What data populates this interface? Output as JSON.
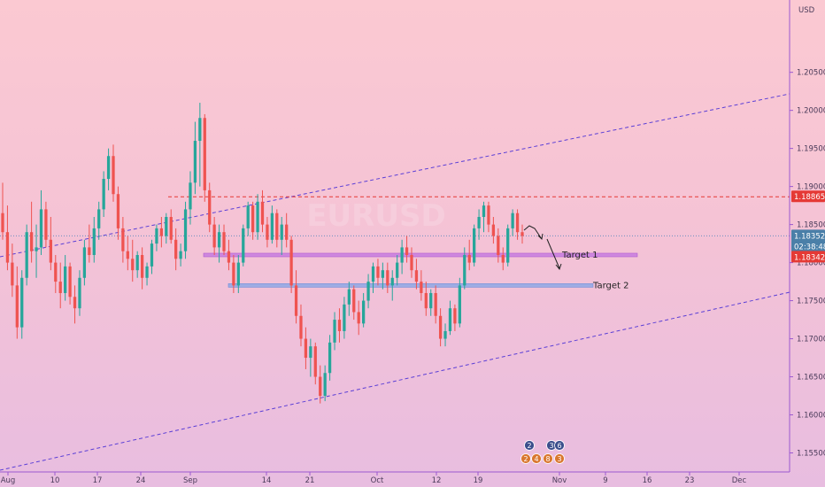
{
  "chart_data": {
    "type": "candlestick",
    "currency": "USD",
    "y_ticks": [
      "1.15500",
      "1.16000",
      "1.16500",
      "1.17000",
      "1.17500",
      "1.18000",
      "1.18500",
      "1.19000",
      "1.19500",
      "1.20000",
      "1.20500"
    ],
    "ylim": [
      1.1525,
      1.2145
    ],
    "x_ticks": [
      "Aug",
      "10",
      "17",
      "24",
      "Sep",
      "14",
      "21",
      "Oct",
      "12",
      "19",
      "Nov",
      "9",
      "16",
      "23",
      "Dec"
    ],
    "price_labels": {
      "resistance": "1.18865",
      "current": "1.18352",
      "countdown": "02:38:48",
      "last": "1.18342"
    },
    "annotations": {
      "target1": "Target 1",
      "target2": "Target 2",
      "target1_price": 1.181,
      "target2_price": 1.177
    },
    "watermark": "EURUSD",
    "events": {
      "top": [
        "2",
        "3",
        "6"
      ],
      "bottom": [
        "2",
        "4",
        "8",
        "3"
      ]
    },
    "colors": {
      "up": "#26a69a",
      "down": "#ef5350",
      "channel": "#5b3fd6",
      "resistance": "#e53935",
      "zone1": "#c77ddf",
      "zone2": "#8fa8e6"
    },
    "series": [
      {
        "o": 1.1865,
        "h": 1.1905,
        "l": 1.183,
        "c": 1.184
      },
      {
        "o": 1.184,
        "h": 1.1875,
        "l": 1.179,
        "c": 1.18
      },
      {
        "o": 1.18,
        "h": 1.1825,
        "l": 1.1755,
        "c": 1.177
      },
      {
        "o": 1.177,
        "h": 1.1795,
        "l": 1.17,
        "c": 1.1715
      },
      {
        "o": 1.1715,
        "h": 1.179,
        "l": 1.17,
        "c": 1.178
      },
      {
        "o": 1.178,
        "h": 1.185,
        "l": 1.177,
        "c": 1.184
      },
      {
        "o": 1.184,
        "h": 1.188,
        "l": 1.18,
        "c": 1.1815
      },
      {
        "o": 1.1815,
        "h": 1.185,
        "l": 1.178,
        "c": 1.182
      },
      {
        "o": 1.182,
        "h": 1.1895,
        "l": 1.181,
        "c": 1.187
      },
      {
        "o": 1.187,
        "h": 1.188,
        "l": 1.182,
        "c": 1.183
      },
      {
        "o": 1.183,
        "h": 1.186,
        "l": 1.179,
        "c": 1.18
      },
      {
        "o": 1.18,
        "h": 1.181,
        "l": 1.176,
        "c": 1.1775
      },
      {
        "o": 1.1775,
        "h": 1.18,
        "l": 1.174,
        "c": 1.176
      },
      {
        "o": 1.176,
        "h": 1.181,
        "l": 1.175,
        "c": 1.1795
      },
      {
        "o": 1.1795,
        "h": 1.18,
        "l": 1.1745,
        "c": 1.1755
      },
      {
        "o": 1.1755,
        "h": 1.177,
        "l": 1.172,
        "c": 1.174
      },
      {
        "o": 1.174,
        "h": 1.179,
        "l": 1.173,
        "c": 1.178
      },
      {
        "o": 1.178,
        "h": 1.183,
        "l": 1.177,
        "c": 1.182
      },
      {
        "o": 1.182,
        "h": 1.185,
        "l": 1.18,
        "c": 1.181
      },
      {
        "o": 1.181,
        "h": 1.186,
        "l": 1.18,
        "c": 1.1845
      },
      {
        "o": 1.1845,
        "h": 1.188,
        "l": 1.183,
        "c": 1.187
      },
      {
        "o": 1.187,
        "h": 1.192,
        "l": 1.186,
        "c": 1.191
      },
      {
        "o": 1.191,
        "h": 1.195,
        "l": 1.1895,
        "c": 1.194
      },
      {
        "o": 1.194,
        "h": 1.1955,
        "l": 1.188,
        "c": 1.189
      },
      {
        "o": 1.189,
        "h": 1.19,
        "l": 1.183,
        "c": 1.1845
      },
      {
        "o": 1.1845,
        "h": 1.186,
        "l": 1.18,
        "c": 1.1815
      },
      {
        "o": 1.1815,
        "h": 1.1835,
        "l": 1.179,
        "c": 1.1805
      },
      {
        "o": 1.1805,
        "h": 1.183,
        "l": 1.1775,
        "c": 1.179
      },
      {
        "o": 1.179,
        "h": 1.1815,
        "l": 1.178,
        "c": 1.181
      },
      {
        "o": 1.181,
        "h": 1.182,
        "l": 1.1765,
        "c": 1.178
      },
      {
        "o": 1.178,
        "h": 1.18,
        "l": 1.177,
        "c": 1.1795
      },
      {
        "o": 1.1795,
        "h": 1.183,
        "l": 1.1785,
        "c": 1.1825
      },
      {
        "o": 1.1825,
        "h": 1.185,
        "l": 1.1815,
        "c": 1.1845
      },
      {
        "o": 1.1845,
        "h": 1.186,
        "l": 1.182,
        "c": 1.1835
      },
      {
        "o": 1.1835,
        "h": 1.1865,
        "l": 1.1825,
        "c": 1.186
      },
      {
        "o": 1.186,
        "h": 1.187,
        "l": 1.1825,
        "c": 1.183
      },
      {
        "o": 1.183,
        "h": 1.1845,
        "l": 1.179,
        "c": 1.1805
      },
      {
        "o": 1.1805,
        "h": 1.1825,
        "l": 1.1795,
        "c": 1.1815
      },
      {
        "o": 1.1815,
        "h": 1.188,
        "l": 1.1805,
        "c": 1.187
      },
      {
        "o": 1.187,
        "h": 1.192,
        "l": 1.185,
        "c": 1.1905
      },
      {
        "o": 1.1905,
        "h": 1.1985,
        "l": 1.189,
        "c": 1.196
      },
      {
        "o": 1.196,
        "h": 1.201,
        "l": 1.19,
        "c": 1.199
      },
      {
        "o": 1.199,
        "h": 1.1995,
        "l": 1.188,
        "c": 1.1895
      },
      {
        "o": 1.1895,
        "h": 1.1905,
        "l": 1.184,
        "c": 1.185
      },
      {
        "o": 1.185,
        "h": 1.186,
        "l": 1.181,
        "c": 1.182
      },
      {
        "o": 1.182,
        "h": 1.185,
        "l": 1.18,
        "c": 1.184
      },
      {
        "o": 1.184,
        "h": 1.185,
        "l": 1.181,
        "c": 1.1815
      },
      {
        "o": 1.1815,
        "h": 1.183,
        "l": 1.179,
        "c": 1.18
      },
      {
        "o": 1.18,
        "h": 1.181,
        "l": 1.176,
        "c": 1.177
      },
      {
        "o": 1.177,
        "h": 1.181,
        "l": 1.176,
        "c": 1.18
      },
      {
        "o": 1.18,
        "h": 1.185,
        "l": 1.1795,
        "c": 1.1845
      },
      {
        "o": 1.1845,
        "h": 1.188,
        "l": 1.1835,
        "c": 1.1875
      },
      {
        "o": 1.1875,
        "h": 1.188,
        "l": 1.183,
        "c": 1.184
      },
      {
        "o": 1.184,
        "h": 1.189,
        "l": 1.183,
        "c": 1.188
      },
      {
        "o": 1.188,
        "h": 1.1895,
        "l": 1.184,
        "c": 1.185
      },
      {
        "o": 1.185,
        "h": 1.186,
        "l": 1.182,
        "c": 1.183
      },
      {
        "o": 1.183,
        "h": 1.1875,
        "l": 1.1825,
        "c": 1.1865
      },
      {
        "o": 1.1865,
        "h": 1.187,
        "l": 1.182,
        "c": 1.183
      },
      {
        "o": 1.183,
        "h": 1.186,
        "l": 1.181,
        "c": 1.185
      },
      {
        "o": 1.185,
        "h": 1.1865,
        "l": 1.182,
        "c": 1.183
      },
      {
        "o": 1.183,
        "h": 1.1835,
        "l": 1.176,
        "c": 1.177
      },
      {
        "o": 1.177,
        "h": 1.179,
        "l": 1.172,
        "c": 1.173
      },
      {
        "o": 1.173,
        "h": 1.1745,
        "l": 1.169,
        "c": 1.17
      },
      {
        "o": 1.17,
        "h": 1.1715,
        "l": 1.166,
        "c": 1.1675
      },
      {
        "o": 1.1675,
        "h": 1.17,
        "l": 1.165,
        "c": 1.169
      },
      {
        "o": 1.169,
        "h": 1.1695,
        "l": 1.164,
        "c": 1.165
      },
      {
        "o": 1.165,
        "h": 1.1665,
        "l": 1.1615,
        "c": 1.1625
      },
      {
        "o": 1.1625,
        "h": 1.1665,
        "l": 1.1618,
        "c": 1.1655
      },
      {
        "o": 1.1655,
        "h": 1.1705,
        "l": 1.1645,
        "c": 1.1695
      },
      {
        "o": 1.1695,
        "h": 1.1735,
        "l": 1.1685,
        "c": 1.1725
      },
      {
        "o": 1.1725,
        "h": 1.174,
        "l": 1.1695,
        "c": 1.171
      },
      {
        "o": 1.171,
        "h": 1.1755,
        "l": 1.17,
        "c": 1.1745
      },
      {
        "o": 1.1745,
        "h": 1.1775,
        "l": 1.173,
        "c": 1.1765
      },
      {
        "o": 1.1765,
        "h": 1.177,
        "l": 1.1725,
        "c": 1.1735
      },
      {
        "o": 1.1735,
        "h": 1.175,
        "l": 1.1705,
        "c": 1.172
      },
      {
        "o": 1.172,
        "h": 1.176,
        "l": 1.1715,
        "c": 1.175
      },
      {
        "o": 1.175,
        "h": 1.1785,
        "l": 1.174,
        "c": 1.1775
      },
      {
        "o": 1.1775,
        "h": 1.18,
        "l": 1.176,
        "c": 1.1795
      },
      {
        "o": 1.1795,
        "h": 1.1805,
        "l": 1.177,
        "c": 1.178
      },
      {
        "o": 1.178,
        "h": 1.18,
        "l": 1.1765,
        "c": 1.179
      },
      {
        "o": 1.179,
        "h": 1.18,
        "l": 1.176,
        "c": 1.177
      },
      {
        "o": 1.177,
        "h": 1.179,
        "l": 1.175,
        "c": 1.178
      },
      {
        "o": 1.178,
        "h": 1.181,
        "l": 1.177,
        "c": 1.18
      },
      {
        "o": 1.18,
        "h": 1.183,
        "l": 1.1785,
        "c": 1.182
      },
      {
        "o": 1.182,
        "h": 1.1835,
        "l": 1.18,
        "c": 1.181
      },
      {
        "o": 1.181,
        "h": 1.182,
        "l": 1.178,
        "c": 1.179
      },
      {
        "o": 1.179,
        "h": 1.1805,
        "l": 1.1765,
        "c": 1.1775
      },
      {
        "o": 1.1775,
        "h": 1.179,
        "l": 1.175,
        "c": 1.176
      },
      {
        "o": 1.176,
        "h": 1.1775,
        "l": 1.173,
        "c": 1.174
      },
      {
        "o": 1.174,
        "h": 1.1765,
        "l": 1.173,
        "c": 1.176
      },
      {
        "o": 1.176,
        "h": 1.177,
        "l": 1.172,
        "c": 1.173
      },
      {
        "o": 1.173,
        "h": 1.174,
        "l": 1.169,
        "c": 1.17
      },
      {
        "o": 1.17,
        "h": 1.172,
        "l": 1.169,
        "c": 1.171
      },
      {
        "o": 1.171,
        "h": 1.175,
        "l": 1.1705,
        "c": 1.174
      },
      {
        "o": 1.174,
        "h": 1.1745,
        "l": 1.171,
        "c": 1.172
      },
      {
        "o": 1.172,
        "h": 1.178,
        "l": 1.1715,
        "c": 1.177
      },
      {
        "o": 1.177,
        "h": 1.182,
        "l": 1.1765,
        "c": 1.181
      },
      {
        "o": 1.181,
        "h": 1.183,
        "l": 1.179,
        "c": 1.18
      },
      {
        "o": 1.18,
        "h": 1.185,
        "l": 1.1795,
        "c": 1.1845
      },
      {
        "o": 1.1845,
        "h": 1.187,
        "l": 1.183,
        "c": 1.186
      },
      {
        "o": 1.186,
        "h": 1.188,
        "l": 1.184,
        "c": 1.1875
      },
      {
        "o": 1.1875,
        "h": 1.188,
        "l": 1.184,
        "c": 1.185
      },
      {
        "o": 1.185,
        "h": 1.186,
        "l": 1.1825,
        "c": 1.1835
      },
      {
        "o": 1.1835,
        "h": 1.1845,
        "l": 1.18,
        "c": 1.181
      },
      {
        "o": 1.181,
        "h": 1.182,
        "l": 1.179,
        "c": 1.18
      },
      {
        "o": 1.18,
        "h": 1.185,
        "l": 1.1795,
        "c": 1.1845
      },
      {
        "o": 1.1845,
        "h": 1.187,
        "l": 1.1835,
        "c": 1.1865
      },
      {
        "o": 1.1865,
        "h": 1.187,
        "l": 1.183,
        "c": 1.184
      },
      {
        "o": 1.184,
        "h": 1.185,
        "l": 1.1825,
        "c": 1.1835
      }
    ]
  }
}
